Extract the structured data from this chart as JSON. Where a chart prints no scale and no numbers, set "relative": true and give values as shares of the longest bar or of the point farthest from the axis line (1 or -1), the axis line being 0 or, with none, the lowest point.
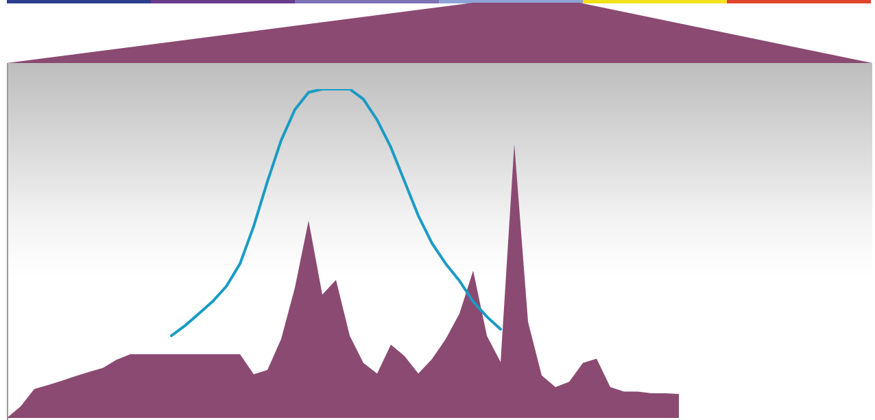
{
  "chart_data": {
    "type": "area",
    "relative": true,
    "marker": "none",
    "categories": [
      null,
      null,
      null,
      null,
      null,
      null,
      null,
      null,
      null,
      null,
      null,
      null,
      null,
      null,
      null,
      null,
      null,
      null,
      null,
      null,
      null,
      null,
      null,
      null,
      null,
      null,
      null,
      null,
      null,
      null,
      null,
      null,
      null,
      null,
      null,
      null,
      null,
      null,
      null,
      null,
      null,
      null,
      null,
      null,
      null,
      null,
      null,
      null,
      null,
      null,
      null,
      null,
      null,
      null,
      null,
      null,
      null,
      null,
      null,
      null,
      null,
      null,
      null,
      null
    ],
    "series": [
      {
        "color": "#8b4a72",
        "values": [
          0,
          0.035,
          0.088,
          0.1,
          0.113,
          0.127,
          0.14,
          0.152,
          0.177,
          0.194,
          0.194,
          0.194,
          0.194,
          0.194,
          0.194,
          0.194,
          0.194,
          0.194,
          0.133,
          0.146,
          0.24,
          0.396,
          0.6,
          0.375,
          0.42,
          0.25,
          0.167,
          0.135,
          0.223,
          0.188,
          0.135,
          0.179,
          0.24,
          0.317,
          0.448,
          0.25,
          0.17,
          0.833,
          0.292,
          0.129,
          0.094,
          0.11,
          0.167,
          0.18,
          0.094,
          0.08,
          0.08,
          0.075,
          0.075,
          0.073,
          null,
          null,
          null,
          null,
          null,
          null,
          null,
          null,
          null,
          null,
          null,
          null,
          null,
          null
        ]
      },
      {
        "type": "line",
        "color": "#1a9bc4",
        "values": [
          null,
          null,
          null,
          null,
          null,
          null,
          null,
          null,
          null,
          null,
          null,
          null,
          0.25,
          0.281,
          0.317,
          0.354,
          0.4,
          0.469,
          0.583,
          0.719,
          0.844,
          0.9375,
          0.99,
          1,
          1,
          1,
          0.969,
          0.906,
          0.823,
          0.719,
          0.615,
          0.531,
          0.469,
          0.417,
          0.354,
          0.308,
          0.27,
          null,
          null,
          null,
          null,
          null,
          null,
          null,
          null,
          null,
          null,
          null,
          null,
          null,
          null,
          null,
          null,
          null,
          null,
          null,
          null,
          null,
          null,
          null,
          null,
          null,
          null,
          null
        ]
      }
    ]
  }
}
